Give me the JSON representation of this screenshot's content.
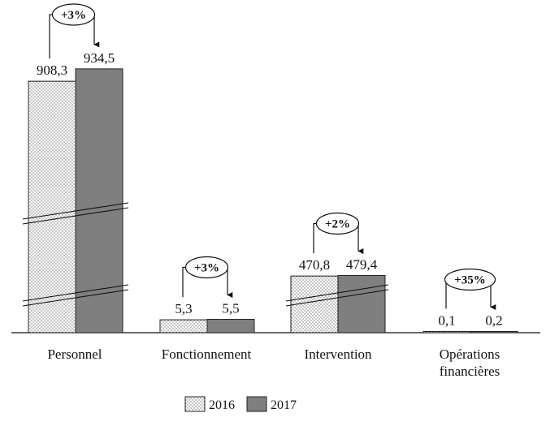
{
  "chart_data": {
    "type": "bar",
    "title": "",
    "xlabel": "",
    "ylabel": "",
    "axis_break": true,
    "categories": [
      {
        "lines": [
          "Personnel"
        ]
      },
      {
        "lines": [
          "Fonctionnement"
        ]
      },
      {
        "lines": [
          "Intervention"
        ]
      },
      {
        "lines": [
          "Opérations",
          "financières"
        ]
      }
    ],
    "series": [
      {
        "name": "2016",
        "color": "#f2f2f2",
        "pattern": "dotted",
        "values": [
          908.3,
          5.3,
          470.8,
          0.1
        ],
        "labels": [
          "908,3",
          "5,3",
          "470,8",
          "0,1"
        ]
      },
      {
        "name": "2017",
        "color": "#7f7f7f",
        "pattern": "solid",
        "values": [
          934.5,
          5.5,
          479.4,
          0.2
        ],
        "labels": [
          "934,5",
          "5,5",
          "479,4",
          "0,2"
        ]
      }
    ],
    "changes": [
      "+3%",
      "+3%",
      "+2%",
      "+35%"
    ],
    "legend": {
      "position": "bottom-center",
      "items": [
        "2016",
        "2017"
      ]
    }
  }
}
